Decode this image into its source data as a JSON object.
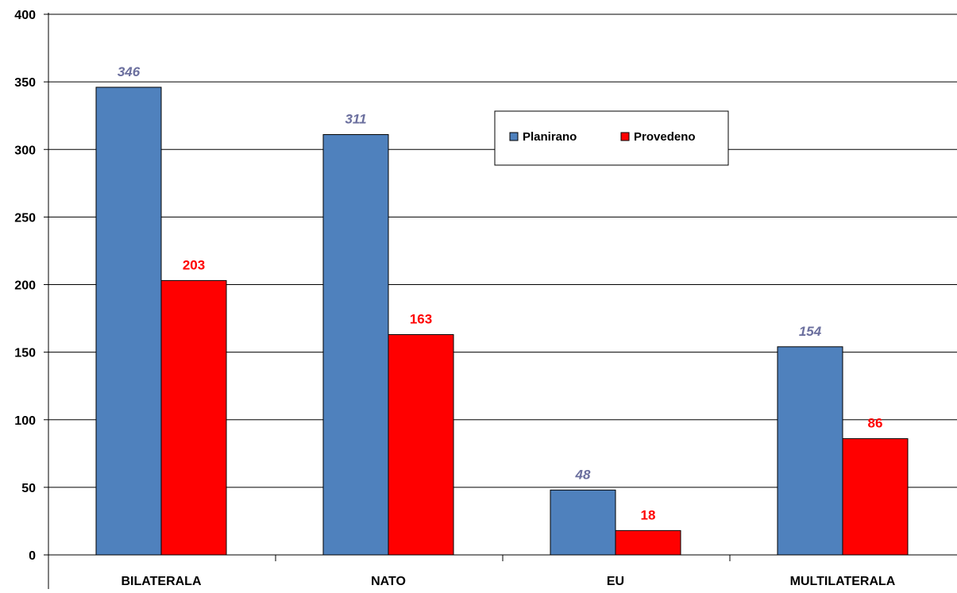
{
  "chart_data": {
    "type": "bar",
    "categories": [
      "BILATERALA",
      "NATO",
      "EU",
      "MULTILATERALA"
    ],
    "series": [
      {
        "name": "Planirano",
        "values": [
          346,
          311,
          48,
          154
        ],
        "color": "#4F81BD",
        "label_color": "#6B6F9E"
      },
      {
        "name": "Provedeno",
        "values": [
          203,
          163,
          18,
          86
        ],
        "color": "#FF0000",
        "label_color": "#FF0000"
      }
    ],
    "ylim": [
      0,
      400
    ],
    "yticks": [
      0,
      50,
      100,
      150,
      200,
      250,
      300,
      350,
      400
    ],
    "grid": true,
    "legend_position": "top-right"
  }
}
